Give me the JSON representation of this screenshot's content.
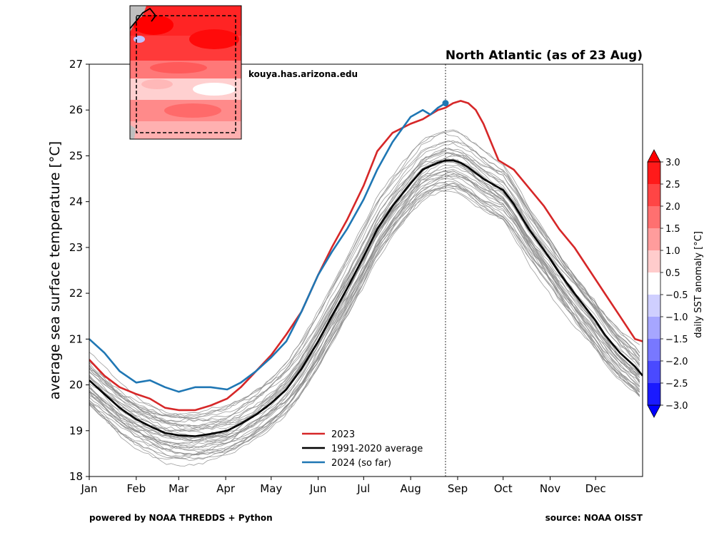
{
  "chart_data": {
    "type": "line",
    "title": "North Atlantic (as of 23 Aug)",
    "ylabel": "average sea surface temperature [°C]",
    "xlabel": "",
    "ylim": [
      18,
      27
    ],
    "xlim_days": [
      0,
      365
    ],
    "yticks": [
      18,
      19,
      20,
      21,
      22,
      23,
      24,
      25,
      26,
      27
    ],
    "month_labels": [
      "Jan",
      "Feb",
      "Mar",
      "Apr",
      "May",
      "Jun",
      "Jul",
      "Aug",
      "Sep",
      "Oct",
      "Nov",
      "Dec"
    ],
    "current_day_marker": 235,
    "legend_position": "lower-center",
    "series": [
      {
        "name": "2023",
        "color": "#d62728",
        "x": [
          0,
          10,
          20,
          31,
          40,
          50,
          59,
          70,
          80,
          91,
          100,
          110,
          120,
          130,
          140,
          151,
          160,
          170,
          181,
          190,
          200,
          212,
          220,
          225,
          230,
          235,
          240,
          245,
          250,
          255,
          260,
          265,
          270,
          280,
          290,
          300,
          310,
          320,
          330,
          340,
          350,
          360,
          365
        ],
        "y": [
          20.55,
          20.2,
          19.95,
          19.8,
          19.7,
          19.5,
          19.45,
          19.45,
          19.55,
          19.7,
          19.95,
          20.3,
          20.65,
          21.1,
          21.6,
          22.4,
          23.0,
          23.6,
          24.35,
          25.1,
          25.5,
          25.7,
          25.8,
          25.9,
          26.0,
          26.05,
          26.15,
          26.2,
          26.15,
          26.0,
          25.7,
          25.3,
          24.9,
          24.7,
          24.3,
          23.9,
          23.4,
          23.0,
          22.5,
          22.0,
          21.5,
          21.0,
          20.95
        ]
      },
      {
        "name": "1991-2020 average",
        "color": "#000000",
        "x": [
          0,
          10,
          20,
          31,
          40,
          50,
          59,
          70,
          80,
          91,
          100,
          110,
          120,
          130,
          140,
          151,
          160,
          170,
          181,
          190,
          200,
          212,
          220,
          230,
          235,
          240,
          245,
          250,
          260,
          273,
          280,
          290,
          304,
          310,
          320,
          334,
          340,
          350,
          360,
          365
        ],
        "y": [
          20.1,
          19.8,
          19.5,
          19.25,
          19.1,
          18.95,
          18.9,
          18.88,
          18.93,
          19.0,
          19.15,
          19.35,
          19.6,
          19.9,
          20.35,
          20.95,
          21.5,
          22.1,
          22.8,
          23.4,
          23.9,
          24.4,
          24.7,
          24.85,
          24.9,
          24.9,
          24.85,
          24.75,
          24.5,
          24.25,
          23.95,
          23.4,
          22.75,
          22.45,
          22.0,
          21.4,
          21.1,
          20.7,
          20.4,
          20.2
        ]
      },
      {
        "name": "2024 (so far)",
        "color": "#1f77b4",
        "x": [
          0,
          10,
          20,
          31,
          40,
          50,
          59,
          70,
          80,
          91,
          100,
          110,
          120,
          130,
          140,
          151,
          160,
          170,
          181,
          190,
          200,
          212,
          220,
          225,
          230,
          235
        ],
        "y": [
          21.0,
          20.7,
          20.3,
          20.05,
          20.1,
          19.95,
          19.85,
          19.95,
          19.95,
          19.9,
          20.05,
          20.3,
          20.6,
          20.95,
          21.6,
          22.4,
          22.9,
          23.4,
          24.05,
          24.7,
          25.3,
          25.85,
          26.0,
          25.9,
          26.05,
          26.15
        ]
      }
    ],
    "background_years": "individual years (gray lines)",
    "colorbar": {
      "label": "daily SST anomaly [°C]",
      "ticks": [
        "−3.0",
        "−2.5",
        "−2.0",
        "−1.5",
        "−1.0",
        "−0.5",
        "0.5",
        "1.0",
        "1.5",
        "2.0",
        "2.5",
        "3.0"
      ],
      "colors": [
        "#0000ff",
        "#2b2bff",
        "#5555ff",
        "#8080ff",
        "#aaaaff",
        "#d5d5ff",
        "#ffffff",
        "#ffd5d5",
        "#ffaaaa",
        "#ff8080",
        "#ff5555",
        "#ff2b2b",
        "#ff0000"
      ]
    }
  },
  "footer": {
    "left": "powered by NOAA THREDDS + Python",
    "right": "source: NOAA OISST"
  },
  "watermark": "kouya.has.arizona.edu"
}
